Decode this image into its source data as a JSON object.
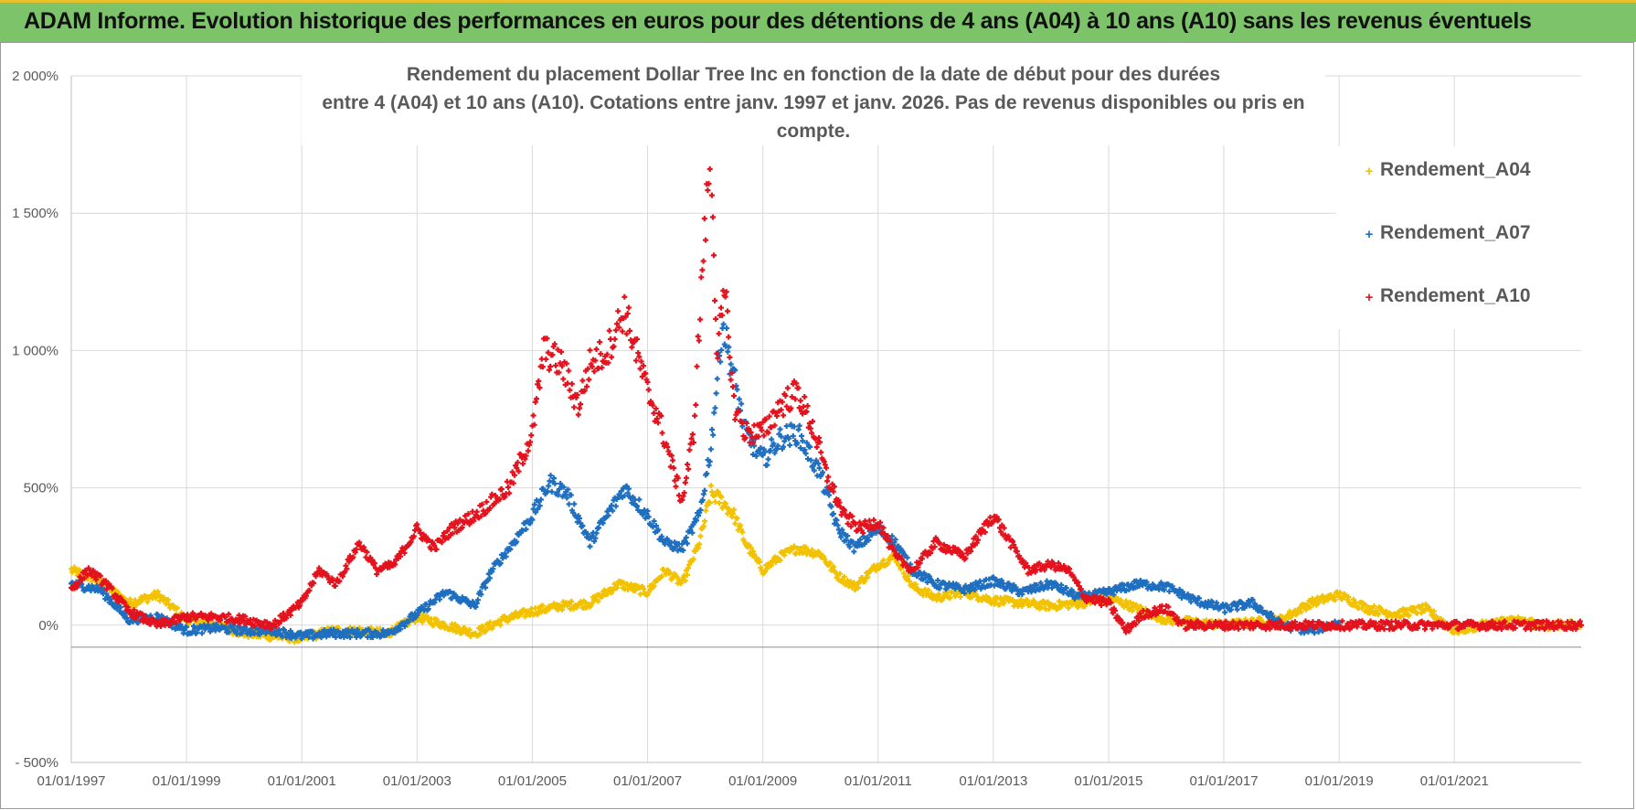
{
  "header": {
    "title": "ADAM Informe. Evolution historique des performances en euros pour des détentions de 4 ans (A04) à 10 ans (A10) sans les revenus éventuels"
  },
  "chart_data": {
    "type": "scatter",
    "title_line1": "Rendement du placement Dollar Tree Inc en fonction de la date de début pour des durées",
    "title_line2": "entre 4 (A04) et 10 ans (A10).  Cotations entre janv. 1997 et janv. 2026. Pas de revenus disponibles ou pris en compte.",
    "xlabel": "",
    "ylabel": "",
    "xlim": [
      1997.0,
      2023.2
    ],
    "ylim": [
      -500,
      2000
    ],
    "y_ticks": [
      -500,
      0,
      500,
      1000,
      1500,
      2000
    ],
    "y_tick_labels": [
      "- 500%",
      "0%",
      "500%",
      "1 000%",
      "1 500%",
      "2 000%"
    ],
    "x_ticks": [
      1997,
      1999,
      2001,
      2003,
      2005,
      2007,
      2009,
      2011,
      2013,
      2015,
      2017,
      2019,
      2021
    ],
    "x_tick_labels": [
      "01/01/1997",
      "01/01/1999",
      "01/01/2001",
      "01/01/2003",
      "01/01/2005",
      "01/01/2007",
      "01/01/2009",
      "01/01/2011",
      "01/01/2013",
      "01/01/2015",
      "01/01/2017",
      "01/01/2019",
      "01/01/2021"
    ],
    "gridlines": true,
    "legend_position": "top-right",
    "marker": "+",
    "series": [
      {
        "name": "Rendement_A04",
        "color": "#f2c200",
        "x": [
          1997.0,
          1997.5,
          1998.0,
          1998.5,
          1999.0,
          1999.5,
          2000.0,
          2000.5,
          2001.0,
          2001.5,
          2002.0,
          2002.5,
          2003.0,
          2003.5,
          2004.0,
          2004.5,
          2005.0,
          2005.5,
          2006.0,
          2006.5,
          2007.0,
          2007.3,
          2007.6,
          2007.9,
          2008.1,
          2008.3,
          2008.5,
          2008.7,
          2009.0,
          2009.3,
          2009.6,
          2010.0,
          2010.3,
          2010.6,
          2011.0,
          2011.3,
          2011.6,
          2012.0,
          2012.5,
          2013.0,
          2013.5,
          2014.0,
          2014.5,
          2015.0,
          2015.5,
          2016.0,
          2016.5,
          2017.0,
          2017.5,
          2018.0,
          2018.5,
          2019.0,
          2019.5,
          2020.0,
          2020.5,
          2021.0,
          2021.5,
          2022.0,
          2022.5,
          2023.2
        ],
        "values": [
          200,
          160,
          80,
          110,
          20,
          0,
          -30,
          -40,
          -50,
          -20,
          -20,
          -30,
          30,
          0,
          -30,
          20,
          50,
          70,
          80,
          150,
          120,
          200,
          150,
          300,
          480,
          450,
          400,
          300,
          200,
          250,
          280,
          260,
          180,
          140,
          220,
          250,
          140,
          100,
          120,
          90,
          80,
          70,
          80,
          100,
          60,
          20,
          10,
          0,
          10,
          20,
          80,
          110,
          60,
          40,
          60,
          -20,
          0,
          20,
          0,
          0
        ]
      },
      {
        "name": "Rendement_A07",
        "color": "#1f6fc0",
        "x": [
          1997.0,
          1997.5,
          1998.0,
          1998.5,
          1999.0,
          1999.5,
          2000.0,
          2000.5,
          2001.0,
          2001.5,
          2002.0,
          2002.5,
          2003.0,
          2003.5,
          2004.0,
          2004.3,
          2004.6,
          2005.0,
          2005.3,
          2005.6,
          2006.0,
          2006.3,
          2006.6,
          2007.0,
          2007.3,
          2007.6,
          2007.9,
          2008.1,
          2008.3,
          2008.5,
          2008.7,
          2009.0,
          2009.3,
          2009.6,
          2010.0,
          2010.3,
          2010.6,
          2011.0,
          2011.3,
          2011.6,
          2012.0,
          2012.5,
          2013.0,
          2013.5,
          2014.0,
          2014.5,
          2015.0,
          2015.5,
          2016.0,
          2016.5,
          2017.0,
          2017.5,
          2018.0,
          2018.5,
          2019.0
        ],
        "values": [
          150,
          130,
          20,
          30,
          -20,
          -10,
          -20,
          -20,
          -40,
          -30,
          -30,
          -30,
          40,
          120,
          70,
          200,
          280,
          400,
          520,
          480,
          300,
          400,
          500,
          400,
          300,
          280,
          400,
          650,
          1100,
          900,
          700,
          600,
          680,
          700,
          550,
          350,
          280,
          350,
          300,
          200,
          150,
          130,
          160,
          120,
          150,
          100,
          120,
          150,
          140,
          90,
          60,
          80,
          0,
          -20,
          10
        ]
      },
      {
        "name": "Rendement_A10",
        "color": "#e3121c",
        "x": [
          1997.0,
          1997.3,
          1997.6,
          1998.0,
          1998.5,
          1999.0,
          1999.5,
          2000.0,
          2000.5,
          2001.0,
          2001.3,
          2001.6,
          2002.0,
          2002.3,
          2002.6,
          2003.0,
          2003.3,
          2003.6,
          2004.0,
          2004.3,
          2004.6,
          2005.0,
          2005.2,
          2005.5,
          2005.8,
          2006.0,
          2006.3,
          2006.6,
          2007.0,
          2007.2,
          2007.4,
          2007.6,
          2007.8,
          2007.95,
          2008.1,
          2008.2,
          2008.35,
          2008.5,
          2008.7,
          2009.0,
          2009.3,
          2009.6,
          2009.9,
          2010.1,
          2010.4,
          2010.7,
          2011.0,
          2011.3,
          2011.6,
          2012.0,
          2012.5,
          2013.0,
          2013.3,
          2013.6,
          2014.0,
          2014.3,
          2014.6,
          2015.0,
          2015.3,
          2015.6,
          2016.0,
          2016.3,
          2017.0,
          2018.0,
          2019.0,
          2020.0,
          2021.0,
          2022.0,
          2023.2
        ],
        "values": [
          130,
          200,
          150,
          50,
          0,
          30,
          30,
          20,
          0,
          80,
          200,
          150,
          300,
          200,
          220,
          350,
          280,
          350,
          400,
          450,
          500,
          700,
          1000,
          950,
          800,
          950,
          1000,
          1150,
          850,
          750,
          600,
          450,
          700,
          1300,
          1750,
          1000,
          1200,
          800,
          700,
          700,
          800,
          850,
          700,
          550,
          400,
          350,
          380,
          250,
          200,
          300,
          250,
          400,
          300,
          200,
          220,
          200,
          100,
          80,
          -20,
          40,
          60,
          0,
          0,
          0,
          0,
          0,
          0,
          0,
          0
        ]
      }
    ]
  }
}
